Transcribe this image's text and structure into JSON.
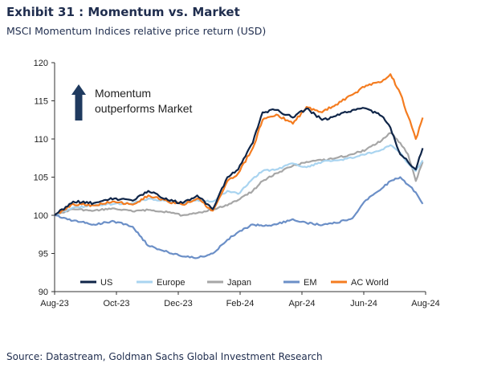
{
  "header": {
    "title": "Exhibit 31 : Momentum vs. Market",
    "subtitle": "MSCI Momentum Indices relative price return (USD)"
  },
  "footer": {
    "source": "Source: Datastream, Goldman Sachs Global Investment Research"
  },
  "chart_data": {
    "type": "line",
    "title": "",
    "xlabel": "",
    "ylabel": "",
    "ylim": [
      90,
      120
    ],
    "yticks": [
      90,
      95,
      100,
      105,
      110,
      115,
      120
    ],
    "xticks": [
      "Aug-23",
      "Oct-23",
      "Dec-23",
      "Feb-24",
      "Apr-24",
      "Jun-24",
      "Aug-24"
    ],
    "xlim": [
      "2023-08-01",
      "2024-08-15"
    ],
    "grid": false,
    "legend_position": "bottom",
    "annotation": {
      "line1": "Momentum",
      "line2": "outperforms  Market",
      "arrow": "up-arrow",
      "color": "#1f3a5f"
    },
    "series": [
      {
        "name": "US",
        "color": "#0f2548",
        "x": [
          "2023-08-01",
          "2023-08-20",
          "2023-09-10",
          "2023-10-01",
          "2023-10-20",
          "2023-11-05",
          "2023-11-25",
          "2023-12-10",
          "2023-12-25",
          "2024-01-10",
          "2024-01-25",
          "2024-02-05",
          "2024-02-20",
          "2024-03-01",
          "2024-03-15",
          "2024-04-01",
          "2024-04-15",
          "2024-05-01",
          "2024-05-15",
          "2024-06-01",
          "2024-06-15",
          "2024-07-01",
          "2024-07-10",
          "2024-07-20",
          "2024-07-28",
          "2024-08-05",
          "2024-08-12"
        ],
        "values": [
          100,
          101.8,
          101.6,
          102.2,
          101.9,
          103.2,
          102.0,
          101.6,
          102.6,
          100.8,
          105.0,
          106.0,
          109.5,
          113.5,
          113.8,
          112.8,
          114.0,
          112.5,
          113.0,
          113.8,
          114.0,
          113.0,
          111.5,
          108.0,
          107.0,
          106.0,
          108.8
        ]
      },
      {
        "name": "Europe",
        "color": "#a9d4f0",
        "x": [
          "2023-08-01",
          "2023-08-20",
          "2023-09-10",
          "2023-10-01",
          "2023-10-20",
          "2023-11-05",
          "2023-11-25",
          "2023-12-10",
          "2023-12-25",
          "2024-01-10",
          "2024-01-25",
          "2024-02-05",
          "2024-02-20",
          "2024-03-01",
          "2024-03-15",
          "2024-04-01",
          "2024-04-15",
          "2024-05-01",
          "2024-05-15",
          "2024-06-01",
          "2024-06-15",
          "2024-07-01",
          "2024-07-10",
          "2024-07-20",
          "2024-07-28",
          "2024-08-05",
          "2024-08-12"
        ],
        "values": [
          100,
          101.0,
          101.3,
          101.5,
          101.6,
          102.2,
          101.8,
          101.6,
          102.0,
          101.8,
          103.2,
          102.8,
          104.8,
          105.8,
          106.0,
          106.8,
          106.3,
          107.0,
          107.2,
          107.5,
          108.0,
          108.6,
          109.2,
          108.2,
          106.8,
          105.8,
          107.2
        ]
      },
      {
        "name": "Japan",
        "color": "#a6a6a6",
        "x": [
          "2023-08-01",
          "2023-08-20",
          "2023-09-10",
          "2023-10-01",
          "2023-10-20",
          "2023-11-05",
          "2023-11-25",
          "2023-12-10",
          "2023-12-25",
          "2024-01-10",
          "2024-01-25",
          "2024-02-05",
          "2024-02-20",
          "2024-03-01",
          "2024-03-15",
          "2024-04-01",
          "2024-04-15",
          "2024-05-01",
          "2024-05-15",
          "2024-06-01",
          "2024-06-15",
          "2024-07-01",
          "2024-07-10",
          "2024-07-20",
          "2024-07-28",
          "2024-08-05",
          "2024-08-12"
        ],
        "values": [
          100,
          100.8,
          100.6,
          100.9,
          100.5,
          100.7,
          100.4,
          100.0,
          100.3,
          100.8,
          101.3,
          102.0,
          103.2,
          104.5,
          105.5,
          106.5,
          107.0,
          107.2,
          107.5,
          108.0,
          108.6,
          109.8,
          110.8,
          109.5,
          108.0,
          104.5,
          107.0
        ]
      },
      {
        "name": "EM",
        "color": "#6b8fc7",
        "x": [
          "2023-08-01",
          "2023-08-20",
          "2023-09-10",
          "2023-10-01",
          "2023-10-20",
          "2023-11-05",
          "2023-11-25",
          "2023-12-10",
          "2023-12-25",
          "2024-01-10",
          "2024-01-25",
          "2024-02-05",
          "2024-02-20",
          "2024-03-01",
          "2024-03-15",
          "2024-04-01",
          "2024-04-15",
          "2024-05-01",
          "2024-05-15",
          "2024-06-01",
          "2024-06-15",
          "2024-07-01",
          "2024-07-10",
          "2024-07-20",
          "2024-07-28",
          "2024-08-05",
          "2024-08-12"
        ],
        "values": [
          100,
          99.3,
          98.8,
          99.2,
          98.5,
          96.0,
          95.2,
          94.6,
          94.4,
          95.0,
          96.8,
          97.8,
          98.8,
          98.6,
          98.8,
          99.5,
          99.0,
          98.7,
          99.0,
          99.6,
          102.0,
          103.5,
          104.5,
          105.0,
          104.0,
          103.0,
          101.5
        ]
      },
      {
        "name": "AC World",
        "color": "#f47c20",
        "x": [
          "2023-08-01",
          "2023-08-20",
          "2023-09-10",
          "2023-10-01",
          "2023-10-20",
          "2023-11-05",
          "2023-11-25",
          "2023-12-10",
          "2023-12-25",
          "2024-01-10",
          "2024-01-25",
          "2024-02-05",
          "2024-02-20",
          "2024-03-01",
          "2024-03-15",
          "2024-04-01",
          "2024-04-15",
          "2024-05-01",
          "2024-05-15",
          "2024-06-01",
          "2024-06-15",
          "2024-07-01",
          "2024-07-10",
          "2024-07-20",
          "2024-07-28",
          "2024-08-05",
          "2024-08-12"
        ],
        "values": [
          100,
          101.5,
          101.3,
          101.8,
          101.4,
          102.6,
          101.8,
          101.4,
          102.2,
          100.6,
          104.5,
          105.5,
          108.8,
          112.5,
          113.2,
          112.0,
          114.2,
          113.5,
          114.5,
          115.8,
          117.0,
          117.5,
          118.5,
          116.0,
          113.0,
          110.0,
          112.8
        ]
      }
    ]
  }
}
